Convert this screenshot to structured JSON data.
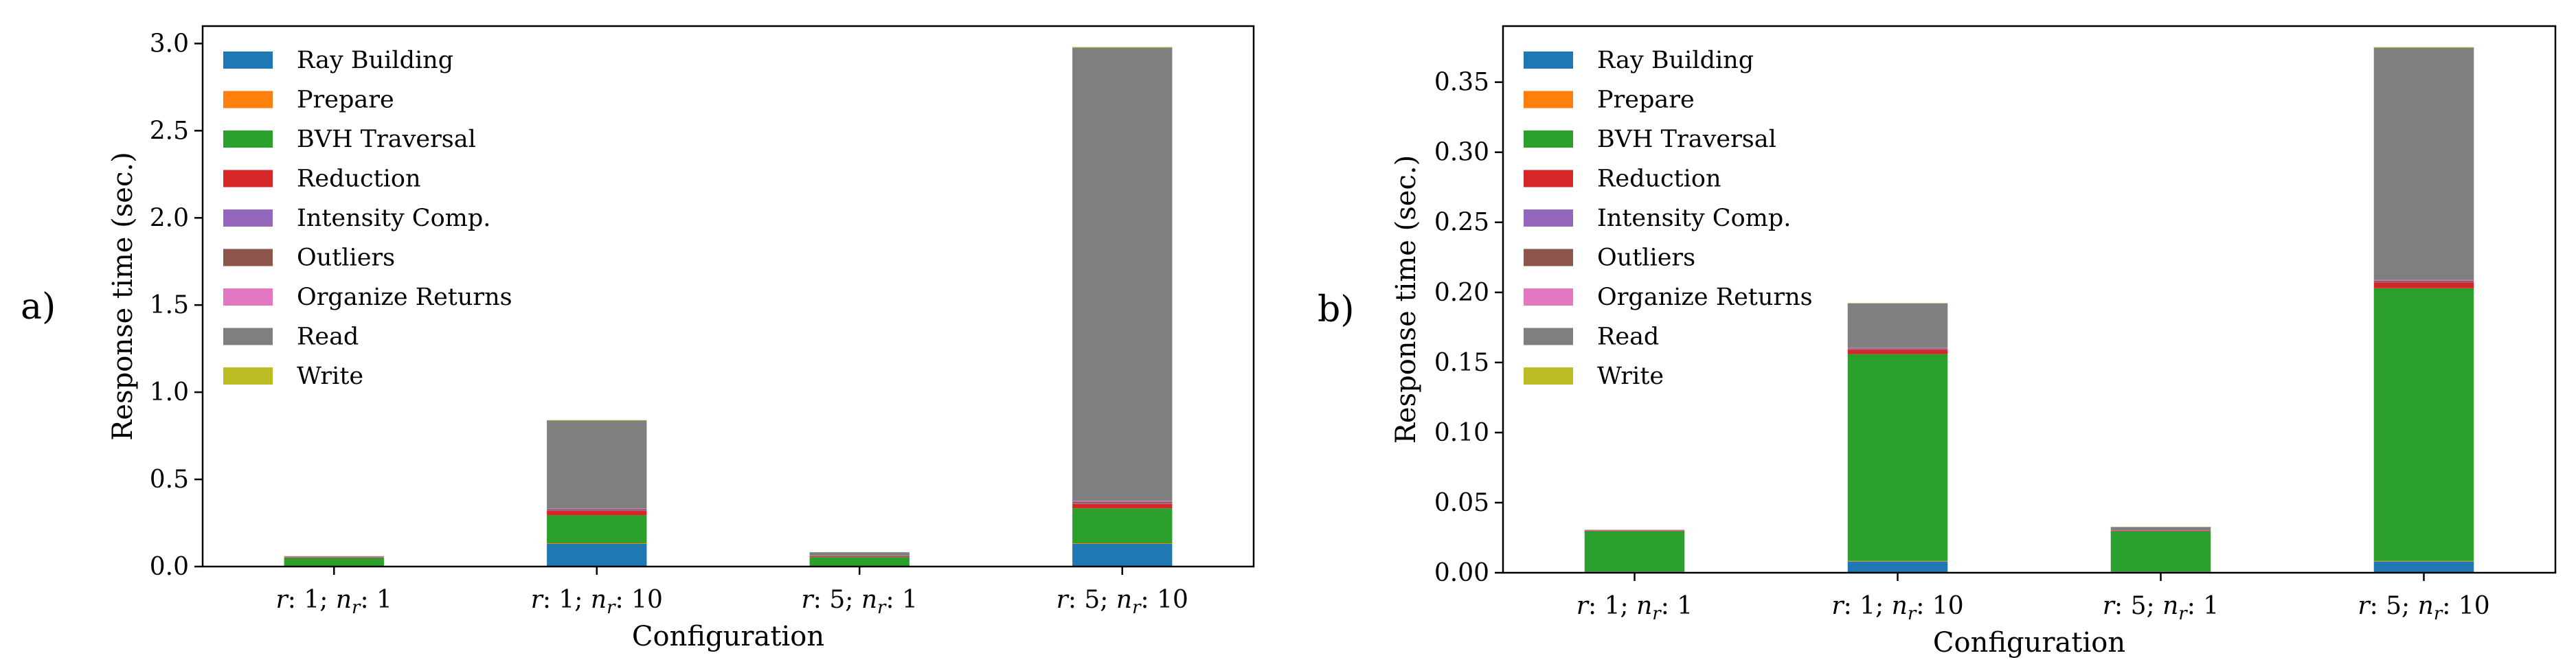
{
  "colors": {
    "Ray Building": "#1f77b4",
    "Prepare": "#ff7f0e",
    "BVH Traversal": "#2ca02c",
    "Reduction": "#d62728",
    "Intensity Comp.": "#9467bd",
    "Outliers": "#8c564b",
    "Organize Returns": "#e377c2",
    "Read": "#7f7f7f",
    "Write": "#bcbd22"
  },
  "chart_data": [
    {
      "type": "bar",
      "stacked": true,
      "panel_label": "a)",
      "xlabel": "Configuration",
      "ylabel": "Response time (sec.)",
      "ylim": [
        0,
        3.1
      ],
      "yticks": [
        "0.0",
        "0.5",
        "1.0",
        "1.5",
        "2.0",
        "2.5",
        "3.0"
      ],
      "ytick_values": [
        0,
        0.5,
        1.0,
        1.5,
        2.0,
        2.5,
        3.0
      ],
      "categories": [
        {
          "r": "r",
          "rval": "1",
          "n": "n",
          "sub": "r",
          "nval": "1"
        },
        {
          "r": "r",
          "rval": "1",
          "n": "n",
          "sub": "r",
          "nval": "10"
        },
        {
          "r": "r",
          "rval": "5",
          "n": "n",
          "sub": "r",
          "nval": "1"
        },
        {
          "r": "r",
          "rval": "5",
          "n": "n",
          "sub": "r",
          "nval": "10"
        }
      ],
      "legend_position": "top-left",
      "series": [
        {
          "name": "Ray Building",
          "values": [
            0.003,
            0.13,
            0.003,
            0.13
          ]
        },
        {
          "name": "Prepare",
          "values": [
            0.001,
            0.004,
            0.001,
            0.004
          ]
        },
        {
          "name": "BVH Traversal",
          "values": [
            0.045,
            0.16,
            0.05,
            0.2
          ]
        },
        {
          "name": "Reduction",
          "values": [
            0.003,
            0.025,
            0.005,
            0.025
          ]
        },
        {
          "name": "Intensity Comp.",
          "values": [
            0.001,
            0.004,
            0.001,
            0.004
          ]
        },
        {
          "name": "Outliers",
          "values": [
            0.001,
            0.006,
            0.001,
            0.01
          ]
        },
        {
          "name": "Organize Returns",
          "values": [
            0.001,
            0.003,
            0.001,
            0.004
          ]
        },
        {
          "name": "Read",
          "values": [
            0.004,
            0.505,
            0.02,
            2.6
          ]
        },
        {
          "name": "Write",
          "values": [
            0.001,
            0.003,
            0.001,
            0.003
          ]
        }
      ]
    },
    {
      "type": "bar",
      "stacked": true,
      "panel_label": "b)",
      "xlabel": "Configuration",
      "ylabel": "Response time (sec.)",
      "ylim": [
        0,
        0.39
      ],
      "yticks": [
        "0.00",
        "0.05",
        "0.10",
        "0.15",
        "0.20",
        "0.25",
        "0.30",
        "0.35"
      ],
      "ytick_values": [
        0,
        0.05,
        0.1,
        0.15,
        0.2,
        0.25,
        0.3,
        0.35
      ],
      "categories": [
        {
          "r": "r",
          "rval": "1",
          "n": "n",
          "sub": "r",
          "nval": "1"
        },
        {
          "r": "r",
          "rval": "1",
          "n": "n",
          "sub": "r",
          "nval": "10"
        },
        {
          "r": "r",
          "rval": "5",
          "n": "n",
          "sub": "r",
          "nval": "1"
        },
        {
          "r": "r",
          "rval": "5",
          "n": "n",
          "sub": "r",
          "nval": "10"
        }
      ],
      "legend_position": "top-left",
      "series": [
        {
          "name": "Ray Building",
          "values": [
            0.0008,
            0.008,
            0.0008,
            0.008
          ]
        },
        {
          "name": "Prepare",
          "values": [
            0.0001,
            0.0004,
            0.0001,
            0.0004
          ]
        },
        {
          "name": "BVH Traversal",
          "values": [
            0.0285,
            0.1476,
            0.0285,
            0.1946
          ]
        },
        {
          "name": "Reduction",
          "values": [
            0.0004,
            0.003,
            0.0004,
            0.004
          ]
        },
        {
          "name": "Intensity Comp.",
          "values": [
            0.0001,
            0.0004,
            0.0001,
            0.0004
          ]
        },
        {
          "name": "Outliers",
          "values": [
            0.0001,
            0.0006,
            0.0001,
            0.001
          ]
        },
        {
          "name": "Organize Returns",
          "values": [
            0.0001,
            0.0004,
            0.0001,
            0.0004
          ]
        },
        {
          "name": "Read",
          "values": [
            0.0005,
            0.0318,
            0.0025,
            0.1658
          ]
        },
        {
          "name": "Write",
          "values": [
            0.0001,
            0.0002,
            0.0001,
            0.0004
          ]
        }
      ]
    }
  ]
}
